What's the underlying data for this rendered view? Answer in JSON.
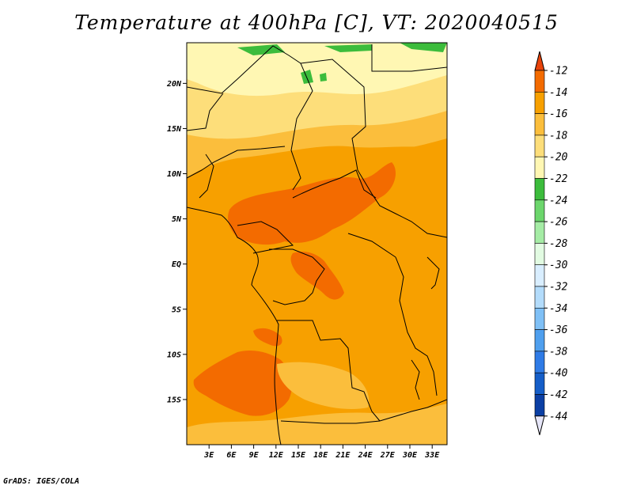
{
  "title": "Temperature at 400hPa [C], VT: 2020040515",
  "credit": "GrADS: IGES/COLA",
  "map": {
    "lat_range": [
      -20,
      24.5
    ],
    "lon_range": [
      0,
      35
    ],
    "lat_ticks": [
      {
        "value": 20,
        "label": "20N"
      },
      {
        "value": 15,
        "label": "15N"
      },
      {
        "value": 10,
        "label": "10N"
      },
      {
        "value": 5,
        "label": "5N"
      },
      {
        "value": 0,
        "label": "EQ"
      },
      {
        "value": -5,
        "label": "5S"
      },
      {
        "value": -10,
        "label": "10S"
      },
      {
        "value": -15,
        "label": "15S"
      }
    ],
    "lon_ticks": [
      {
        "value": 3,
        "label": "3E"
      },
      {
        "value": 6,
        "label": "6E"
      },
      {
        "value": 9,
        "label": "9E"
      },
      {
        "value": 12,
        "label": "12E"
      },
      {
        "value": 15,
        "label": "15E"
      },
      {
        "value": 18,
        "label": "18E"
      },
      {
        "value": 21,
        "label": "21E"
      },
      {
        "value": 24,
        "label": "24E"
      },
      {
        "value": 27,
        "label": "27E"
      },
      {
        "value": 30,
        "label": "30E"
      },
      {
        "value": 33,
        "label": "33E"
      }
    ]
  },
  "colorbar": {
    "labels": [
      "-12",
      "-14",
      "-16",
      "-18",
      "-20",
      "-22",
      "-24",
      "-26",
      "-28",
      "-30",
      "-32",
      "-34",
      "-36",
      "-38",
      "-40",
      "-42",
      "-44"
    ],
    "colors": [
      "#e8430a",
      "#f36b00",
      "#f7a000",
      "#fbbe3c",
      "#fdde7a",
      "#fff7b3",
      "#3cbc3c",
      "#6cd66c",
      "#a5eca5",
      "#e2fbe2",
      "#d9eeff",
      "#b3dcfb",
      "#7fc0f6",
      "#4f9fee",
      "#2f7be6",
      "#155ec8",
      "#0b3fa4",
      "#0a1e78"
    ]
  }
}
